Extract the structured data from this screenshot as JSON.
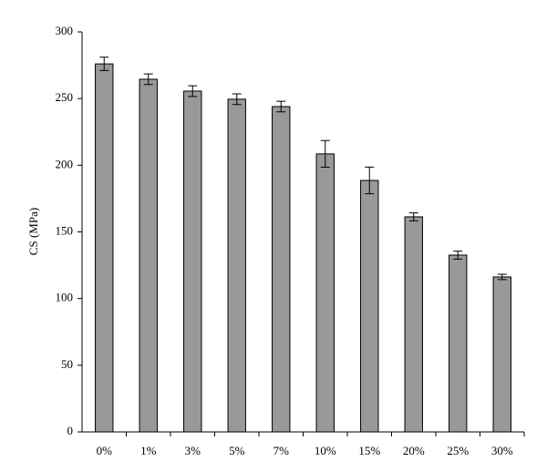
{
  "chart_data": {
    "type": "bar",
    "y_label": "CS (MPa)",
    "categories": [
      "0%",
      "1%",
      "3%",
      "5%",
      "7%",
      "10%",
      "15%",
      "20%",
      "25%",
      "30%"
    ],
    "values": [
      276,
      264.5,
      255.6,
      249.5,
      244,
      208.5,
      188.6,
      161.3,
      132.6,
      116.2
    ],
    "errors": [
      5,
      4,
      4,
      4,
      4,
      10,
      10,
      3,
      3,
      2
    ],
    "color": "#999999",
    "ylim": [
      0,
      300
    ],
    "yticks": [
      0,
      50,
      100,
      150,
      200,
      250,
      300
    ],
    "grid": false
  }
}
